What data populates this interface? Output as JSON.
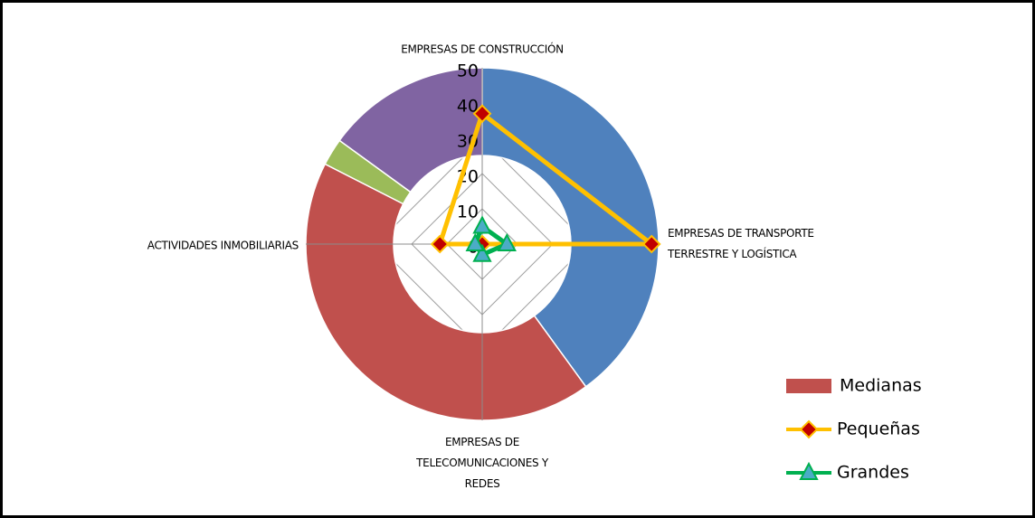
{
  "chart_data": [
    {
      "type": "doughnut",
      "series": [
        {
          "name": "Medianas",
          "color": "#c0504d",
          "slice_colors": [
            "#4f81bd",
            "#c0504d",
            "#9bbb59",
            "#8064a2"
          ],
          "values": [
            16,
            17,
            1,
            6
          ]
        }
      ]
    },
    {
      "type": "radar",
      "categories": [
        "EMPRESAS DE CONSTRUCCIÓN",
        "EMPRESAS DE TRANSPORTE\nTERRESTRE  Y LOGÍSTICA",
        "EMPRESAS DE\nTELECOMUNICACIONES Y\nREDES",
        "ACTIVIDADES INMOBILIARIAS"
      ],
      "series": [
        {
          "name": "Pequeñas",
          "color": "#ffc000",
          "marker_color": "#c00000",
          "marker": "diamond",
          "values": [
            37,
            48,
            0,
            12
          ]
        },
        {
          "name": "Grandes",
          "color": "#00b050",
          "marker_color": "#4bacc6",
          "marker": "triangle",
          "values": [
            5,
            7,
            3,
            2
          ]
        }
      ],
      "rlim": [
        0,
        50
      ],
      "rticks": [
        0,
        10,
        20,
        30,
        40,
        50
      ],
      "grid": true
    }
  ]
}
